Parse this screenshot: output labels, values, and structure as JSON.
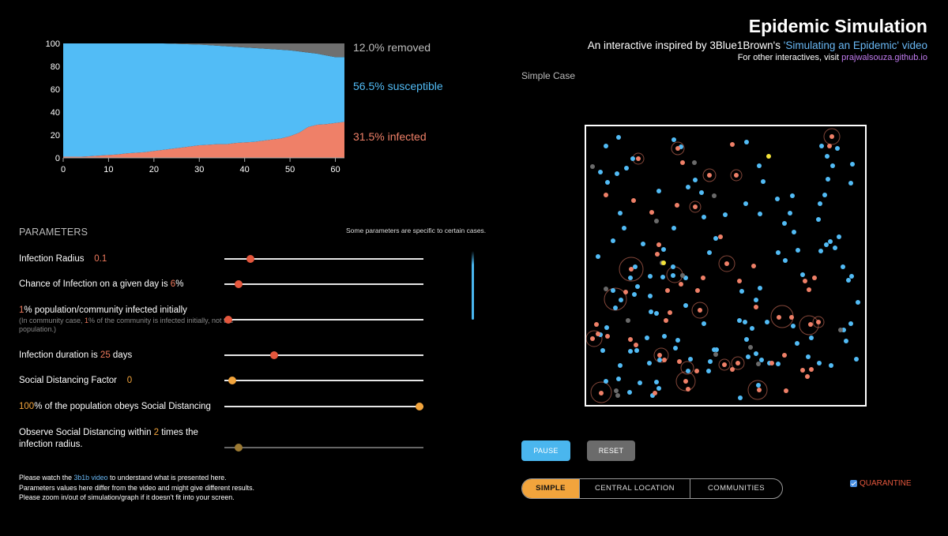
{
  "header": {
    "title": "Epidemic Simulation",
    "subtitle_prefix": "An interactive inspired by 3Blue1Brown's ",
    "subtitle_link": "'Simulating an Epidemic' video",
    "other_prefix": "For other interactives, visit ",
    "other_link": "prajwalsouza.github.io",
    "case_label": "Simple Case"
  },
  "colors": {
    "susceptible": "#52bcf6",
    "infected": "#ef8068",
    "removed": "#6f6f6f",
    "accent_orange": "#f2a43c",
    "button_blue": "#4ab6ee"
  },
  "chart_data": {
    "type": "area",
    "x": [
      0,
      2,
      4,
      6,
      8,
      10,
      12,
      14,
      16,
      18,
      20,
      22,
      24,
      26,
      28,
      30,
      32,
      34,
      36,
      38,
      40,
      42,
      44,
      46,
      48,
      50,
      52,
      54,
      56,
      58,
      60,
      62
    ],
    "series": [
      {
        "name": "infected",
        "values": [
          1,
          1,
          1,
          1.5,
          2,
          2.5,
          3,
          4,
          4.5,
          5,
          6,
          7,
          8,
          9,
          10,
          11,
          11.5,
          12,
          12,
          13,
          13.5,
          14,
          15,
          16,
          17,
          19,
          22,
          27,
          29,
          29.5,
          30.5,
          31.5
        ]
      },
      {
        "name": "susceptible",
        "values": [
          99,
          99,
          99,
          98.5,
          98,
          97.5,
          97,
          96,
          95.5,
          95,
          94,
          93,
          91.7,
          90.5,
          89.2,
          88,
          87,
          86,
          85.5,
          84,
          83,
          82,
          80.5,
          79,
          77.5,
          75,
          71,
          65,
          62,
          60,
          57.5,
          56.5
        ]
      },
      {
        "name": "removed",
        "values": [
          0,
          0,
          0,
          0,
          0,
          0,
          0,
          0,
          0,
          0,
          0,
          0,
          0.3,
          0.5,
          0.8,
          1,
          1.5,
          2,
          2.5,
          3,
          3.5,
          4,
          4.5,
          5,
          5.5,
          6,
          7,
          8,
          9,
          10.5,
          12,
          12
        ]
      }
    ],
    "yticks": [
      "100",
      "80",
      "60",
      "40",
      "20",
      "0"
    ],
    "xticks": [
      "0",
      "10",
      "20",
      "30",
      "40",
      "50",
      "60"
    ],
    "ylim": [
      0,
      100
    ],
    "xlim": [
      0,
      62
    ],
    "legend": [
      {
        "text": "12.0% removed",
        "color": "#bdbdbd"
      },
      {
        "text": "56.5% susceptible",
        "color": "#52bcf6"
      },
      {
        "text": "31.5% infected",
        "color": "#ef8068"
      }
    ]
  },
  "params": {
    "title": "PARAMETERS",
    "note": "Some parameters are specific to certain cases.",
    "infection_radius": {
      "label": "Infection Radius",
      "value": "0.1",
      "level": 0.13
    },
    "chance": {
      "prefix": "Chance of Infection on a given day is ",
      "value": "6",
      "suffix": "%",
      "level": 0.07
    },
    "initial": {
      "value": "1",
      "suffix": "% population/community infected initially",
      "sub_prefix": "(In community case, ",
      "sub_value": "1",
      "sub_suffix": "% of the community is infected initially, not the population.)",
      "level": 0.02
    },
    "duration": {
      "prefix": "Infection duration is ",
      "value": "25",
      "suffix": " days",
      "level": 0.25
    },
    "sd_factor": {
      "label": "Social Distancing Factor",
      "value": "0",
      "level": 0.04
    },
    "obey": {
      "value": "100",
      "suffix": "% of the population obeys Social Distancing",
      "level": 0.98
    },
    "within": {
      "prefix": "Observe Social Distancing within ",
      "value": "2",
      "suffix": " times the infection radius.",
      "level": 0.07
    }
  },
  "footer": {
    "line1_prefix": "Please watch the ",
    "line1_link": "3b1b video",
    "line1_suffix": " to understand what is presented here.",
    "line2": "Parameters values here differ from the video and might give different results.",
    "line3": "Please zoom in/out of simulation/graph if it doesn't fit into your screen."
  },
  "controls": {
    "pause": "PAUSE",
    "reset": "RESET",
    "modes": [
      "SIMPLE",
      "CENTRAL LOCATION",
      "COMMUNITIES"
    ],
    "active_mode": "SIMPLE",
    "quarantine": "QUARANTINE",
    "quarantine_checked": true
  },
  "sim": {
    "dots": [
      [
        783,
        174,
        "s"
      ],
      [
        767,
        185,
        "s"
      ],
      [
        853,
        177,
        "s"
      ],
      [
        862,
        186,
        "s"
      ],
      [
        1040,
        185,
        "s"
      ],
      [
        1047,
        198,
        "s"
      ],
      [
        1054,
        210,
        "s"
      ],
      [
        1060,
        188,
        "s"
      ],
      [
        1079,
        208,
        "s"
      ],
      [
        1077,
        232,
        "s"
      ],
      [
        1048,
        227,
        "s"
      ],
      [
        1044,
        247,
        "s"
      ],
      [
        1038,
        258,
        "s"
      ],
      [
        1036,
        278,
        "s"
      ],
      [
        1003,
        248,
        "s"
      ],
      [
        984,
        252,
        "s"
      ],
      [
        1000,
        270,
        "s"
      ],
      [
        993,
        283,
        "s"
      ],
      [
        1005,
        294,
        "s"
      ],
      [
        962,
        271,
        "s"
      ],
      [
        944,
        258,
        "s"
      ],
      [
        966,
        230,
        "s"
      ],
      [
        961,
        210,
        "s"
      ],
      [
        945,
        180,
        "s"
      ],
      [
        793,
        213,
        "s"
      ],
      [
        801,
        201,
        "s"
      ],
      [
        781,
        220,
        "s"
      ],
      [
        760,
        218,
        "s"
      ],
      [
        785,
        270,
        "s"
      ],
      [
        776,
        305,
        "s"
      ],
      [
        769,
        231,
        "s"
      ],
      [
        790,
        289,
        "s"
      ],
      [
        814,
        309,
        "s"
      ],
      [
        840,
        316,
        "s"
      ],
      [
        853,
        289,
        "s"
      ],
      [
        852,
        338,
        "s"
      ],
      [
        852,
        349,
        "s"
      ],
      [
        839,
        351,
        "s"
      ],
      [
        868,
        352,
        "s"
      ],
      [
        898,
        320,
        "s"
      ],
      [
        906,
        302,
        "s"
      ],
      [
        918,
        272,
        "s"
      ],
      [
        871,
        237,
        "s"
      ],
      [
        880,
        228,
        "s"
      ],
      [
        888,
        244,
        "s"
      ],
      [
        891,
        275,
        "s"
      ],
      [
        834,
        242,
        "s"
      ],
      [
        757,
        325,
        "s"
      ],
      [
        786,
        380,
        "s"
      ],
      [
        779,
        390,
        "s"
      ],
      [
        804,
        338,
        "s"
      ],
      [
        823,
        350,
        "s"
      ],
      [
        798,
        352,
        "s"
      ],
      [
        803,
        373,
        "s"
      ],
      [
        823,
        375,
        "s"
      ],
      [
        824,
        395,
        "s"
      ],
      [
        831,
        397,
        "s"
      ],
      [
        868,
        387,
        "s"
      ],
      [
        891,
        410,
        "s"
      ],
      [
        936,
        406,
        "s"
      ],
      [
        939,
        369,
        "s"
      ],
      [
        962,
        365,
        "s"
      ],
      [
        957,
        380,
        "s"
      ],
      [
        943,
        408,
        "s"
      ],
      [
        985,
        320,
        "s"
      ],
      [
        994,
        330,
        "s"
      ],
      [
        1010,
        317,
        "s"
      ],
      [
        1016,
        348,
        "s"
      ],
      [
        1039,
        318,
        "s"
      ],
      [
        1046,
        310,
        "s"
      ],
      [
        1051,
        306,
        "s"
      ],
      [
        1062,
        300,
        "s"
      ],
      [
        1057,
        314,
        "s"
      ],
      [
        1067,
        338,
        "s"
      ],
      [
        1078,
        350,
        "s"
      ],
      [
        1074,
        355,
        "s"
      ],
      [
        1086,
        383,
        "s"
      ],
      [
        1077,
        410,
        "s"
      ],
      [
        1068,
        418,
        "s"
      ],
      [
        1071,
        432,
        "s"
      ],
      [
        1084,
        455,
        "s"
      ],
      [
        1052,
        463,
        "s"
      ],
      [
        1027,
        428,
        "s"
      ],
      [
        1009,
        435,
        "s"
      ],
      [
        1004,
        413,
        "s"
      ],
      [
        971,
        408,
        "s"
      ],
      [
        952,
        416,
        "s"
      ],
      [
        945,
        430,
        "s"
      ],
      [
        904,
        443,
        "s"
      ],
      [
        897,
        470,
        "s"
      ],
      [
        874,
        455,
        "s"
      ],
      [
        871,
        470,
        "s"
      ],
      [
        841,
        426,
        "s"
      ],
      [
        858,
        431,
        "s"
      ],
      [
        855,
        441,
        "s"
      ],
      [
        835,
        456,
        "s"
      ],
      [
        822,
        460,
        "s"
      ],
      [
        819,
        428,
        "s"
      ],
      [
        806,
        444,
        "s"
      ],
      [
        798,
        445,
        "s"
      ],
      [
        785,
        463,
        "s"
      ],
      [
        783,
        480,
        "s"
      ],
      [
        797,
        497,
        "s"
      ],
      [
        810,
        485,
        "s"
      ],
      [
        831,
        484,
        "s"
      ],
      [
        834,
        492,
        "s"
      ],
      [
        826,
        501,
        "s"
      ],
      [
        768,
        415,
        "s"
      ],
      [
        760,
        424,
        "s"
      ],
      [
        763,
        444,
        "s"
      ],
      [
        767,
        483,
        "s"
      ],
      [
        937,
        504,
        "s"
      ],
      [
        960,
        488,
        "s"
      ],
      [
        964,
        456,
        "s"
      ],
      [
        974,
        460,
        "s"
      ],
      [
        985,
        461,
        "s"
      ],
      [
        1023,
        452,
        "s"
      ],
      [
        1037,
        460,
        "s"
      ],
      [
        807,
        363,
        "s"
      ],
      [
        776,
        368,
        "s"
      ],
      [
        957,
        448,
        "s"
      ],
      [
        947,
        452,
        "s"
      ],
      [
        907,
        443,
        "s"
      ],
      [
        899,
        458,
        "s"
      ],
      [
        808,
        201,
        "i"
      ],
      [
        858,
        188,
        "i"
      ],
      [
        898,
        222,
        "i"
      ],
      [
        932,
        222,
        "i"
      ],
      [
        927,
        183,
        "i"
      ],
      [
        880,
        262,
        "i"
      ],
      [
        857,
        260,
        "i"
      ],
      [
        825,
        269,
        "i"
      ],
      [
        802,
        254,
        "i"
      ],
      [
        767,
        247,
        "i"
      ],
      [
        864,
        206,
        "i"
      ],
      [
        920,
        334,
        "i"
      ],
      [
        954,
        337,
        "i"
      ],
      [
        936,
        356,
        "i"
      ],
      [
        890,
        352,
        "i"
      ],
      [
        883,
        368,
        "i"
      ],
      [
        862,
        360,
        "i"
      ],
      [
        845,
        368,
        "i"
      ],
      [
        799,
        341,
        "i"
      ],
      [
        1050,
        185,
        "i"
      ],
      [
        1053,
        173,
        "i"
      ],
      [
        957,
        389,
        "i"
      ],
      [
        986,
        402,
        "i"
      ],
      [
        1002,
        402,
        "i"
      ],
      [
        1019,
        356,
        "i"
      ],
      [
        1031,
        352,
        "i"
      ],
      [
        1024,
        367,
        "i"
      ],
      [
        1036,
        408,
        "i"
      ],
      [
        1026,
        411,
        "i"
      ],
      [
        886,
        393,
        "i"
      ],
      [
        848,
        396,
        "i"
      ],
      [
        843,
        406,
        "i"
      ],
      [
        755,
        411,
        "i"
      ],
      [
        750,
        429,
        "i"
      ],
      [
        769,
        426,
        "i"
      ],
      [
        835,
        450,
        "i"
      ],
      [
        841,
        456,
        "i"
      ],
      [
        917,
        462,
        "i"
      ],
      [
        934,
        460,
        "i"
      ],
      [
        927,
        468,
        "i"
      ],
      [
        977,
        460,
        "i"
      ],
      [
        993,
        450,
        "i"
      ],
      [
        1016,
        469,
        "i"
      ],
      [
        1027,
        468,
        "i"
      ],
      [
        1022,
        477,
        "i"
      ],
      [
        995,
        495,
        "i"
      ],
      [
        961,
        494,
        "i"
      ],
      [
        868,
        483,
        "i"
      ],
      [
        871,
        493,
        "i"
      ],
      [
        882,
        470,
        "i"
      ],
      [
        860,
        458,
        "i"
      ],
      [
        798,
        430,
        "i"
      ],
      [
        757,
        423,
        "i"
      ],
      [
        761,
        498,
        "i"
      ],
      [
        829,
        498,
        "i"
      ],
      [
        805,
        437,
        "i"
      ],
      [
        912,
        300,
        "i"
      ],
      [
        834,
        310,
        "i"
      ],
      [
        832,
        322,
        "i"
      ],
      [
        792,
        370,
        "i"
      ],
      [
        750,
        211,
        "r"
      ],
      [
        879,
        206,
        "r"
      ],
      [
        904,
        248,
        "r"
      ],
      [
        831,
        280,
        "r"
      ],
      [
        838,
        333,
        "r"
      ],
      [
        767,
        366,
        "r"
      ],
      [
        795,
        406,
        "r"
      ],
      [
        950,
        440,
        "r"
      ],
      [
        960,
        461,
        "r"
      ],
      [
        1064,
        418,
        "r"
      ],
      [
        906,
        449,
        "r"
      ],
      [
        780,
        495,
        "r"
      ],
      [
        782,
        501,
        "r"
      ],
      [
        864,
        349,
        "r"
      ],
      [
        973,
        198,
        "y"
      ],
      [
        840,
        333,
        "y"
      ]
    ],
    "rings": [
      [
        808,
        201,
        7
      ],
      [
        858,
        188,
        8
      ],
      [
        898,
        222,
        8
      ],
      [
        932,
        222,
        7
      ],
      [
        880,
        262,
        7
      ],
      [
        1053,
        173,
        10
      ],
      [
        920,
        334,
        10
      ],
      [
        799,
        341,
        15
      ],
      [
        886,
        393,
        10
      ],
      [
        752,
        429,
        10
      ],
      [
        837,
        450,
        9
      ],
      [
        934,
        460,
        8
      ],
      [
        917,
        462,
        7
      ],
      [
        868,
        483,
        12
      ],
      [
        761,
        497,
        13
      ],
      [
        959,
        494,
        12
      ],
      [
        990,
        401,
        14
      ],
      [
        1024,
        412,
        12
      ],
      [
        1036,
        408,
        7
      ],
      [
        854,
        348,
        10
      ],
      [
        779,
        379,
        14
      ],
      [
        870,
        466,
        8
      ]
    ]
  }
}
